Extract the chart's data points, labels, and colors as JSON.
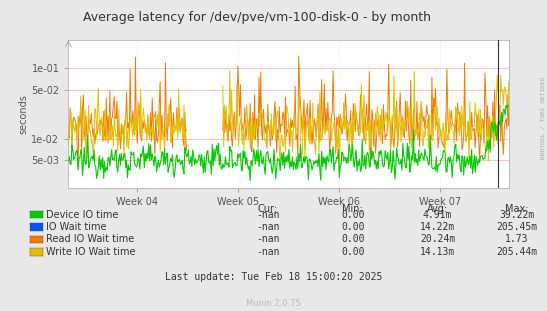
{
  "title": "Average latency for /dev/pve/vm-100-disk-0 - by month",
  "ylabel": "seconds",
  "background_color": "#e8e8e8",
  "plot_bg_color": "#ffffff",
  "grid_color": "#cccccc",
  "grid_color_red": "#ffaaaa",
  "x_tick_labels": [
    "Week 04",
    "Week 05",
    "Week 06",
    "Week 07"
  ],
  "y_ticks": [
    0.005,
    0.01,
    0.05,
    0.1
  ],
  "y_tick_labels": [
    "5e-03",
    "1e-02",
    "5e-02",
    "1e-01"
  ],
  "legend_entries": [
    {
      "label": "Device IO time",
      "color": "#00cc00"
    },
    {
      "label": "IO Wait time",
      "color": "#0055ff"
    },
    {
      "label": "Read IO Wait time",
      "color": "#f57900"
    },
    {
      "label": "Write IO Wait time",
      "color": "#e0c000"
    }
  ],
  "table_headers": [
    "Cur:",
    "Min:",
    "Avg:",
    "Max:"
  ],
  "table_rows": [
    [
      "-nan",
      "0.00",
      "4.91m",
      "39.22m"
    ],
    [
      "-nan",
      "0.00",
      "14.22m",
      "205.45m"
    ],
    [
      "-nan",
      "0.00",
      "20.24m",
      "1.73"
    ],
    [
      "-nan",
      "0.00",
      "14.13m",
      "205.44m"
    ]
  ],
  "footer": "Last update: Tue Feb 18 15:00:20 2025",
  "watermark": "Munin 2.0.75",
  "right_label": "RRDTOOL / TOBI OETIKER",
  "n_points": 500,
  "ylim_min": 0.002,
  "ylim_max": 0.25
}
